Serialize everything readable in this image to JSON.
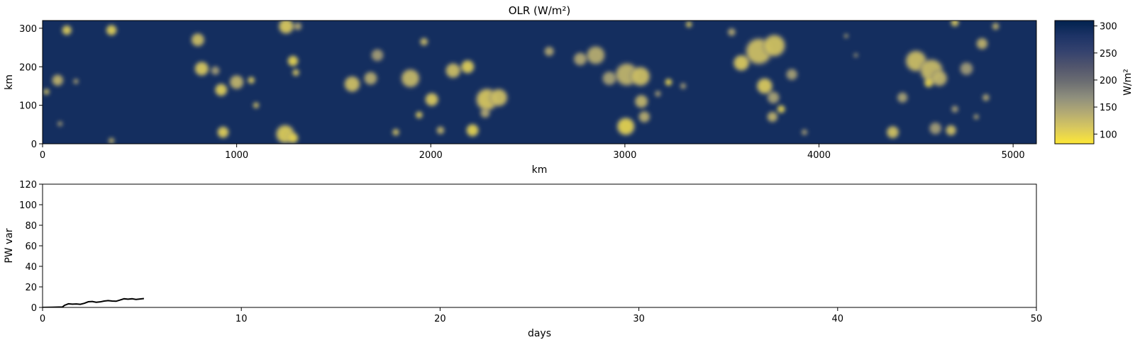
{
  "chart_data": [
    {
      "type": "heatmap",
      "title": "OLR (W/m²)",
      "xlabel": "km",
      "ylabel": "km",
      "xlim": [
        0,
        5120
      ],
      "ylim": [
        0,
        320
      ],
      "xticks": [
        0,
        1000,
        2000,
        3000,
        4000,
        5000
      ],
      "yticks": [
        0,
        100,
        200,
        300
      ],
      "colormap": "cividis",
      "colormap_stops": [
        "#fde737",
        "#d9c95d",
        "#b4ab73",
        "#8f8f7d",
        "#6c6e72",
        "#51556d",
        "#34426e",
        "#1d3366",
        "#00224e"
      ],
      "colorbar": {
        "label": "W/m²",
        "range": [
          82,
          310
        ],
        "ticks": [
          100,
          150,
          200,
          250,
          300
        ]
      },
      "background_value": 290,
      "low_olr_blobs": [
        [
          125,
          295,
          22,
          108
        ],
        [
          355,
          295,
          24,
          104
        ],
        [
          20,
          135,
          14,
          115
        ],
        [
          78,
          165,
          26,
          130
        ],
        [
          172,
          162,
          12,
          140
        ],
        [
          90,
          52,
          12,
          150
        ],
        [
          355,
          8,
          14,
          130
        ],
        [
          800,
          270,
          30,
          120
        ],
        [
          820,
          195,
          32,
          110
        ],
        [
          890,
          190,
          20,
          150
        ],
        [
          920,
          140,
          28,
          105
        ],
        [
          1000,
          160,
          32,
          128
        ],
        [
          1075,
          165,
          16,
          110
        ],
        [
          1100,
          100,
          14,
          120
        ],
        [
          930,
          30,
          26,
          105
        ],
        [
          1255,
          305,
          34,
          110
        ],
        [
          1315,
          305,
          18,
          140
        ],
        [
          1290,
          215,
          24,
          100
        ],
        [
          1305,
          185,
          16,
          115
        ],
        [
          1250,
          25,
          42,
          108
        ],
        [
          1290,
          15,
          24,
          100
        ],
        [
          1595,
          155,
          36,
          118
        ],
        [
          1690,
          170,
          30,
          135
        ],
        [
          1725,
          230,
          28,
          150
        ],
        [
          1895,
          170,
          42,
          125
        ],
        [
          1940,
          75,
          16,
          110
        ],
        [
          1820,
          30,
          16,
          120
        ],
        [
          1965,
          265,
          18,
          125
        ],
        [
          2005,
          115,
          30,
          110
        ],
        [
          2050,
          35,
          18,
          130
        ],
        [
          2115,
          190,
          34,
          120
        ],
        [
          2190,
          200,
          30,
          105
        ],
        [
          2215,
          35,
          28,
          100
        ],
        [
          2290,
          115,
          50,
          112
        ],
        [
          2350,
          120,
          40,
          118
        ],
        [
          2280,
          80,
          22,
          140
        ],
        [
          2610,
          240,
          22,
          140
        ],
        [
          2770,
          220,
          30,
          140
        ],
        [
          2850,
          230,
          42,
          135
        ],
        [
          2920,
          170,
          32,
          145
        ],
        [
          3010,
          180,
          52,
          128
        ],
        [
          3085,
          110,
          30,
          128
        ],
        [
          3080,
          175,
          44,
          118
        ],
        [
          3100,
          70,
          26,
          135
        ],
        [
          3005,
          45,
          40,
          100
        ],
        [
          3225,
          160,
          16,
          98
        ],
        [
          3300,
          150,
          14,
          150
        ],
        [
          3330,
          310,
          14,
          110
        ],
        [
          3170,
          130,
          14,
          150
        ],
        [
          3550,
          290,
          18,
          140
        ],
        [
          3600,
          210,
          36,
          110
        ],
        [
          3690,
          240,
          60,
          118
        ],
        [
          3770,
          255,
          50,
          115
        ],
        [
          3720,
          150,
          36,
          110
        ],
        [
          3765,
          120,
          28,
          145
        ],
        [
          3805,
          90,
          18,
          100
        ],
        [
          3860,
          180,
          26,
          148
        ],
        [
          3760,
          70,
          24,
          130
        ],
        [
          3925,
          30,
          14,
          150
        ],
        [
          4140,
          280,
          10,
          140
        ],
        [
          4190,
          230,
          10,
          150
        ],
        [
          4380,
          30,
          28,
          115
        ],
        [
          4430,
          120,
          24,
          145
        ],
        [
          4500,
          215,
          48,
          120
        ],
        [
          4580,
          190,
          52,
          122
        ],
        [
          4620,
          170,
          36,
          128
        ],
        [
          4565,
          158,
          20,
          98
        ],
        [
          4600,
          40,
          28,
          150
        ],
        [
          4680,
          35,
          24,
          118
        ],
        [
          4700,
          315,
          18,
          110
        ],
        [
          4760,
          195,
          30,
          152
        ],
        [
          4840,
          260,
          26,
          130
        ],
        [
          4860,
          120,
          16,
          140
        ],
        [
          4910,
          305,
          16,
          130
        ],
        [
          4810,
          70,
          12,
          140
        ],
        [
          4700,
          90,
          16,
          150
        ]
      ]
    },
    {
      "type": "line",
      "title": "",
      "xlabel": "days",
      "ylabel": "PW var",
      "xlim": [
        0,
        50
      ],
      "ylim": [
        0,
        120
      ],
      "xticks": [
        0,
        10,
        20,
        30,
        40,
        50
      ],
      "yticks": [
        0,
        20,
        40,
        60,
        80,
        100,
        120
      ],
      "series": [
        {
          "color": "#000000",
          "x": [
            0,
            0.5,
            1.0,
            1.1,
            1.3,
            1.5,
            1.7,
            1.9,
            2.1,
            2.3,
            2.5,
            2.7,
            2.9,
            3.1,
            3.3,
            3.5,
            3.7,
            3.9,
            4.1,
            4.3,
            4.5,
            4.7,
            4.9,
            5.1
          ],
          "y": [
            0,
            0.2,
            0.4,
            2.0,
            3.5,
            3.2,
            3.4,
            3.0,
            4.0,
            5.5,
            5.8,
            5.0,
            5.4,
            6.2,
            6.6,
            6.2,
            6.0,
            7.2,
            8.4,
            8.0,
            8.4,
            7.8,
            8.2,
            8.6
          ]
        }
      ]
    }
  ]
}
